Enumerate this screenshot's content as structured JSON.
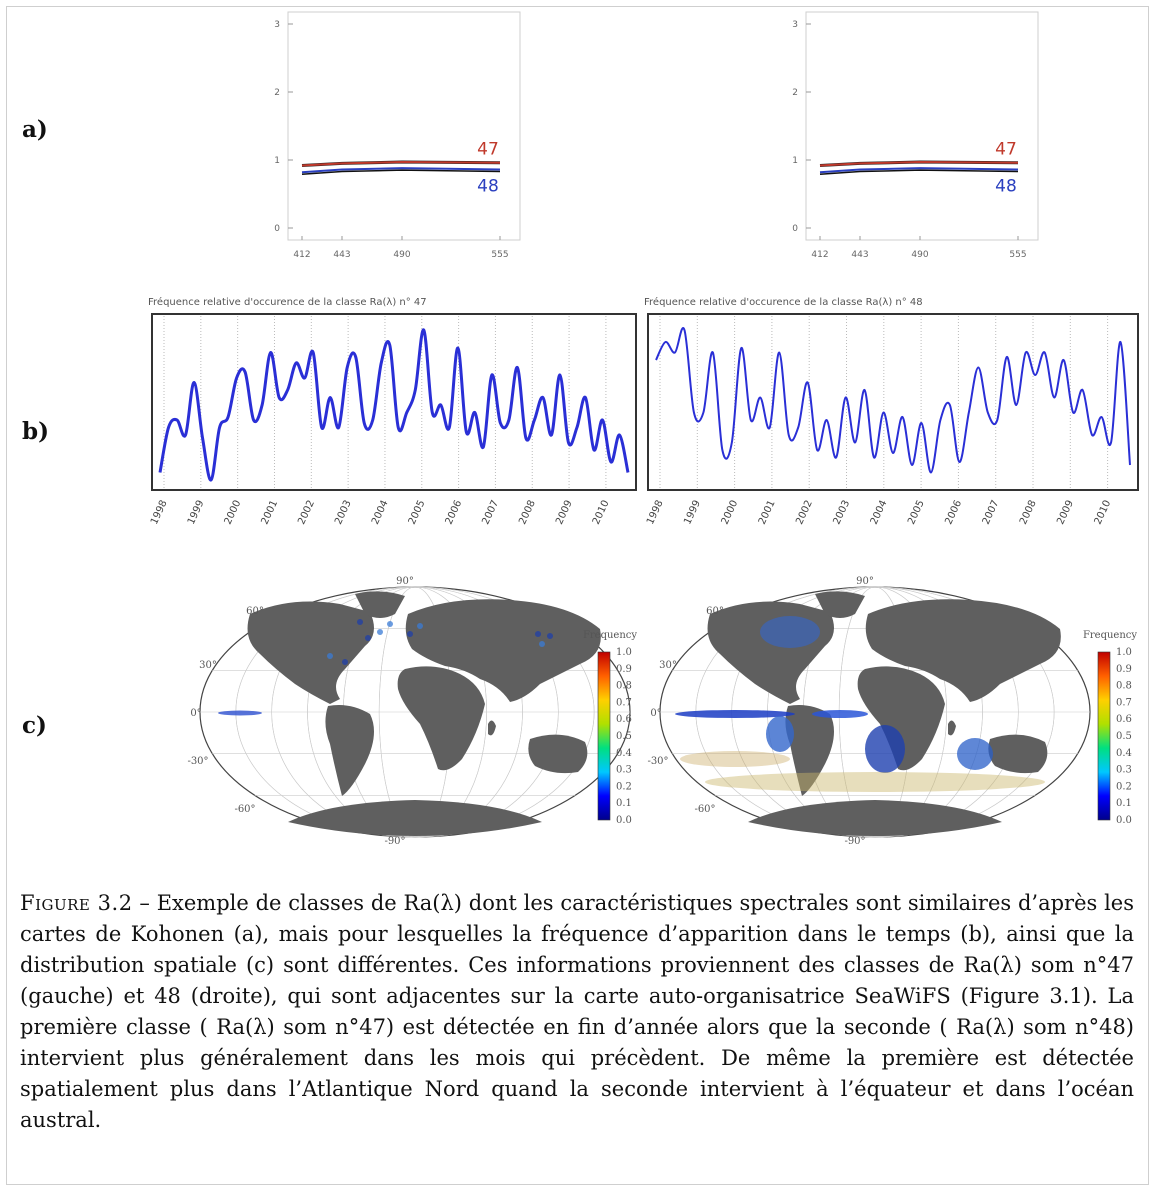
{
  "rows": {
    "a": "a)",
    "b": "b)",
    "c": "c)"
  },
  "spectra": [
    {
      "side": "left",
      "x_ticks": [
        "412",
        "443",
        "490",
        "555"
      ],
      "y_ticks": [
        "3",
        "2",
        "1",
        "0"
      ],
      "series": [
        {
          "name": "47",
          "color": "#c0392b",
          "values": [
            0.92,
            0.95,
            0.97,
            0.96
          ]
        },
        {
          "name": "48",
          "color": "#2a3fbf",
          "values": [
            0.82,
            0.86,
            0.88,
            0.86
          ]
        }
      ]
    },
    {
      "side": "right",
      "x_ticks": [
        "412",
        "443",
        "490",
        "555"
      ],
      "y_ticks": [
        "3",
        "2",
        "1",
        "0"
      ],
      "series": [
        {
          "name": "47",
          "color": "#c0392b",
          "values": [
            0.92,
            0.95,
            0.97,
            0.96
          ]
        },
        {
          "name": "48",
          "color": "#2a3fbf",
          "values": [
            0.82,
            0.86,
            0.88,
            0.86
          ]
        }
      ]
    }
  ],
  "timeseries": [
    {
      "title": "Fréquence relative d'occurence de la classe Ra(λ) n° 47",
      "years": [
        "1998",
        "1999",
        "2000",
        "2001",
        "2002",
        "2003",
        "2004",
        "2005",
        "2006",
        "2007",
        "2008",
        "2009",
        "2010"
      ],
      "values": [
        0.05,
        0.35,
        0.4,
        0.3,
        0.65,
        0.28,
        0.0,
        0.35,
        0.42,
        0.68,
        0.72,
        0.4,
        0.5,
        0.85,
        0.55,
        0.6,
        0.78,
        0.68,
        0.85,
        0.35,
        0.55,
        0.35,
        0.75,
        0.82,
        0.38,
        0.4,
        0.78,
        0.9,
        0.35,
        0.45,
        0.6,
        1.0,
        0.45,
        0.5,
        0.35,
        0.88,
        0.32,
        0.45,
        0.22,
        0.7,
        0.38,
        0.4,
        0.75,
        0.28,
        0.4,
        0.55,
        0.3,
        0.7,
        0.25,
        0.35,
        0.55,
        0.2,
        0.4,
        0.12,
        0.3,
        0.05
      ]
    },
    {
      "title": "Fréquence relative d'occurence de la classe Ra(λ) n° 48",
      "years": [
        "1998",
        "1999",
        "2000",
        "2001",
        "2002",
        "2003",
        "2004",
        "2005",
        "2006",
        "2007",
        "2008",
        "2009",
        "2010"
      ],
      "values": [
        0.8,
        0.92,
        0.85,
        1.0,
        0.45,
        0.45,
        0.85,
        0.2,
        0.25,
        0.88,
        0.4,
        0.55,
        0.35,
        0.85,
        0.3,
        0.35,
        0.65,
        0.2,
        0.4,
        0.15,
        0.55,
        0.25,
        0.6,
        0.15,
        0.45,
        0.18,
        0.42,
        0.1,
        0.38,
        0.05,
        0.4,
        0.5,
        0.12,
        0.45,
        0.75,
        0.45,
        0.4,
        0.82,
        0.5,
        0.85,
        0.7,
        0.85,
        0.55,
        0.8,
        0.45,
        0.6,
        0.3,
        0.42,
        0.25,
        0.92,
        0.1
      ]
    }
  ],
  "maps": [
    {
      "side": "left"
    },
    {
      "side": "right"
    }
  ],
  "map_labels": {
    "lat": [
      "90",
      "60",
      "30",
      "0",
      "-30",
      "-60",
      "-90"
    ]
  },
  "colorbar": {
    "title": "Frequency",
    "ticks": [
      "1.0",
      "0.9",
      "0.8",
      "0.7",
      "0.6",
      "0.5",
      "0.4",
      "0.3",
      "0.2",
      "0.1",
      "0.0"
    ],
    "stops": [
      "#00008b",
      "#0000ff",
      "#00c8ff",
      "#00e080",
      "#b0e000",
      "#ffd000",
      "#ff6000",
      "#c00000"
    ]
  },
  "caption": {
    "label": "Figure 3.2",
    "dash": " –  ",
    "text": "Exemple de classes de Ra(λ) dont les caractéristiques spectrales sont similaires d’après les cartes de Kohonen (a), mais pour lesquelles la fréquence d’apparition dans le temps (b), ainsi que la distribution spatiale (c) sont différentes. Ces informations proviennent des classes de Ra(λ) som n°47 (gauche) et 48 (droite), qui sont adjacentes sur la carte auto-organisatrice SeaWiFS (Figure 3.1). La première classe ( Ra(λ) som n°47) est détectée en fin d’année alors que la seconde ( Ra(λ) som n°48) intervient plus généralement dans les mois qui précèdent. De même la première est détectée spatialement plus dans l’Atlantique Nord quand la seconde intervient à l’équateur et dans l’océan austral."
  }
}
